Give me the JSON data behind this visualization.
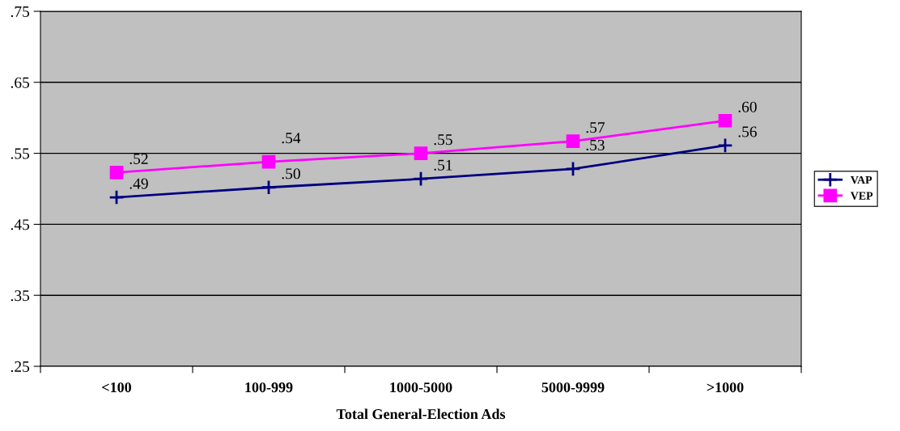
{
  "chart_data": {
    "type": "line",
    "xlabel": "Total General-Election Ads",
    "categories": [
      "<100",
      "100-999",
      "1000-5000",
      "5000-9999",
      ">1000"
    ],
    "series": [
      {
        "name": "VAP",
        "color": "#000080",
        "marker": "cross",
        "values": [
          0.488,
          0.502,
          0.514,
          0.528,
          0.561
        ],
        "value_labels": [
          ".49",
          ".50",
          ".51",
          ".53",
          ".56"
        ]
      },
      {
        "name": "VEP",
        "color": "#ff00ff",
        "marker": "square",
        "values": [
          0.523,
          0.538,
          0.55,
          0.567,
          0.596
        ],
        "value_labels": [
          ".52",
          ".54",
          ".55",
          ".57",
          ".60"
        ]
      }
    ],
    "ylim": [
      0.25,
      0.75
    ],
    "yticks": [
      {
        "value": 0.25,
        "label": ".25"
      },
      {
        "value": 0.35,
        "label": ".35"
      },
      {
        "value": 0.45,
        "label": ".45"
      },
      {
        "value": 0.55,
        "label": ".55"
      },
      {
        "value": 0.65,
        "label": ".65"
      },
      {
        "value": 0.75,
        "label": ".75"
      }
    ],
    "grid": "y",
    "legend": "right"
  }
}
